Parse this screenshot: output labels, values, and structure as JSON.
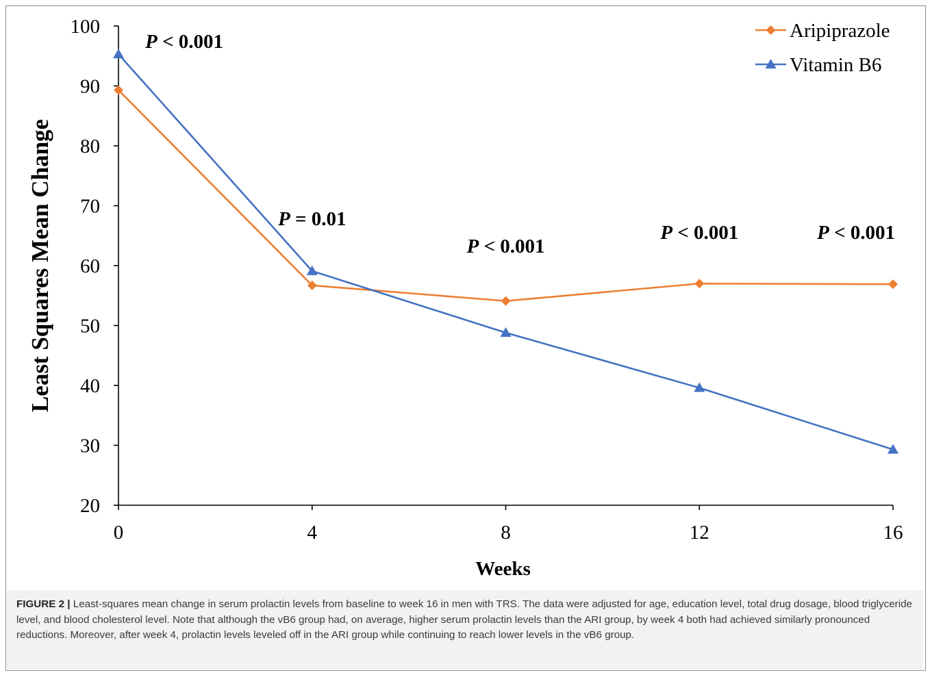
{
  "chart_data": {
    "type": "line",
    "x": [
      0,
      4,
      8,
      12,
      16
    ],
    "xticks": [
      "0",
      "4",
      "8",
      "12",
      "16"
    ],
    "yticks": [
      "20",
      "30",
      "40",
      "50",
      "60",
      "70",
      "80",
      "90",
      "100"
    ],
    "xlim": [
      0,
      16
    ],
    "ylim": [
      20,
      100
    ],
    "xlabel": "Weeks",
    "ylabel": "Least Squares Mean Change",
    "grid": false,
    "legend_position": "top-right",
    "series": [
      {
        "name": "Aripiprazole",
        "values": [
          89.3,
          56.7,
          54.1,
          57.0,
          56.9
        ],
        "color": "#ED7D31",
        "marker": "diamond"
      },
      {
        "name": "Vitamin B6",
        "values": [
          95.3,
          59.1,
          48.8,
          39.6,
          29.3
        ],
        "color": "#4472C4",
        "marker": "triangle"
      }
    ],
    "annotations": [
      {
        "x": 0,
        "text": "P < 0.001",
        "p_symbol": "P",
        "rest": " < 0.001"
      },
      {
        "x": 4,
        "text": "P = 0.01",
        "p_symbol": "P",
        "rest": " = 0.01"
      },
      {
        "x": 8,
        "text": "P < 0.001",
        "p_symbol": "P",
        "rest": " < 0.001"
      },
      {
        "x": 12,
        "text": "P < 0.001",
        "p_symbol": "P",
        "rest": " < 0.001"
      },
      {
        "x": 16,
        "text": "P < 0.001",
        "p_symbol": "P",
        "rest": " < 0.001"
      }
    ]
  },
  "caption": {
    "label": "FIGURE 2 |",
    "text": "Least-squares mean change in serum prolactin levels from baseline to week 16 in men with TRS. The data were adjusted for age, education level, total drug dosage, blood triglyceride level, and blood cholesterol level. Note that although the vB6 group had, on average, higher serum prolactin levels than the ARI group, by week 4 both had achieved similarly pronounced reductions. Moreover, after week 4, prolactin levels leveled off in the ARI group while continuing to reach lower levels in the vB6 group."
  }
}
